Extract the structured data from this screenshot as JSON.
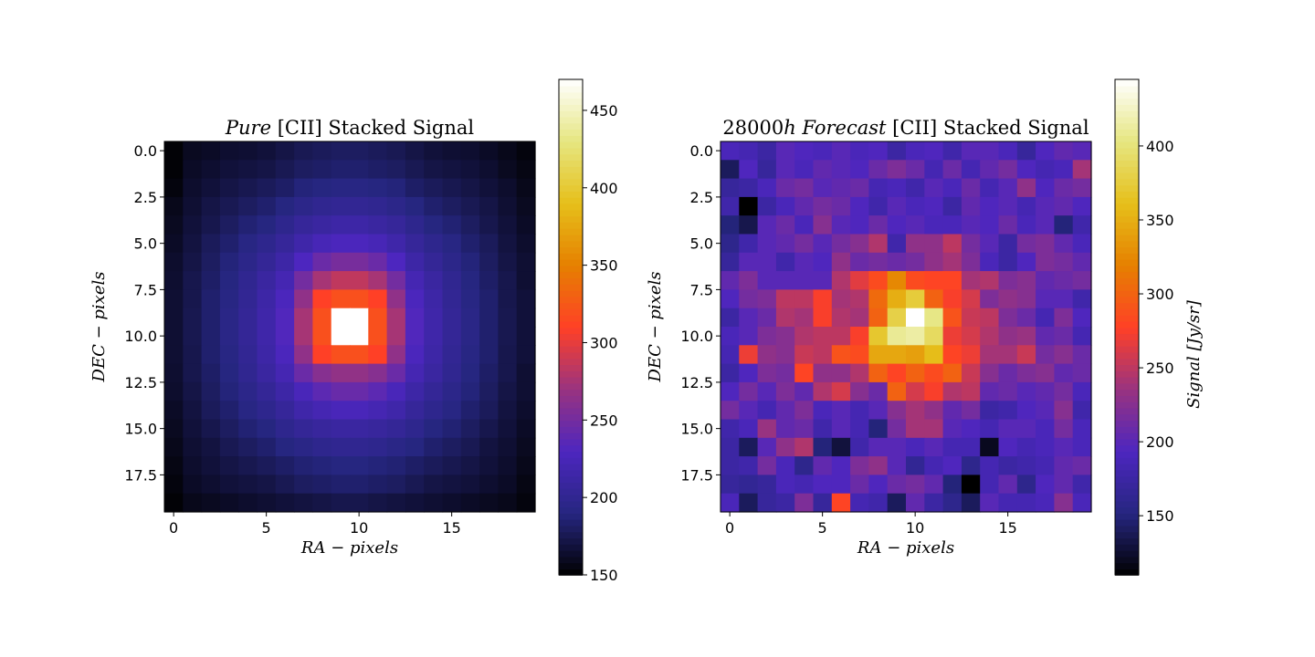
{
  "chart_data": [
    {
      "type": "heatmap",
      "title_parts": [
        {
          "text": "Pure",
          "italic": true
        },
        {
          "text": " [CII] Stacked Signal",
          "italic": false
        }
      ],
      "xlabel": "RA − pixels",
      "ylabel": "DEC − pixels",
      "xticks": [
        "0",
        "5",
        "10",
        "15"
      ],
      "yticks": [
        "0.0",
        "2.5",
        "5.0",
        "7.5",
        "10.0",
        "12.5",
        "15.0",
        "17.5"
      ],
      "xlim": [
        -0.5,
        19.5
      ],
      "ylim": [
        19.5,
        -0.5
      ],
      "colormap": "CMRmap",
      "colorbar": {
        "ticks": [
          "150",
          "200",
          "250",
          "300",
          "350",
          "400",
          "450"
        ],
        "vmin": 150,
        "vmax": 470,
        "label": ""
      },
      "grid": false,
      "values": [
        [
          152,
          160,
          162,
          165,
          166,
          168,
          172,
          176,
          178,
          180,
          180,
          178,
          176,
          172,
          168,
          166,
          165,
          162,
          158,
          154
        ],
        [
          152,
          162,
          165,
          168,
          170,
          172,
          176,
          180,
          182,
          184,
          184,
          182,
          180,
          176,
          172,
          170,
          168,
          165,
          160,
          156
        ],
        [
          154,
          164,
          168,
          172,
          175,
          178,
          182,
          188,
          190,
          192,
          192,
          190,
          188,
          182,
          178,
          175,
          172,
          168,
          164,
          158
        ],
        [
          158,
          166,
          172,
          176,
          180,
          184,
          190,
          196,
          200,
          202,
          202,
          200,
          196,
          190,
          184,
          180,
          176,
          172,
          166,
          160
        ],
        [
          160,
          168,
          174,
          180,
          186,
          190,
          198,
          206,
          210,
          214,
          214,
          210,
          206,
          198,
          190,
          186,
          180,
          174,
          168,
          162
        ],
        [
          162,
          170,
          178,
          184,
          192,
          198,
          206,
          216,
          224,
          228,
          228,
          224,
          216,
          206,
          198,
          192,
          184,
          178,
          170,
          164
        ],
        [
          164,
          172,
          180,
          188,
          196,
          204,
          214,
          230,
          245,
          252,
          252,
          245,
          230,
          214,
          204,
          196,
          188,
          180,
          172,
          166
        ],
        [
          165,
          174,
          182,
          190,
          200,
          210,
          222,
          250,
          275,
          285,
          285,
          275,
          250,
          222,
          210,
          200,
          190,
          182,
          174,
          166
        ],
        [
          166,
          174,
          184,
          192,
          202,
          214,
          228,
          265,
          310,
          320,
          320,
          310,
          265,
          228,
          214,
          202,
          192,
          184,
          174,
          168
        ],
        [
          166,
          175,
          184,
          194,
          204,
          216,
          232,
          275,
          320,
          470,
          470,
          320,
          275,
          232,
          216,
          204,
          194,
          184,
          175,
          168
        ],
        [
          166,
          175,
          184,
          194,
          204,
          216,
          232,
          275,
          320,
          470,
          470,
          320,
          275,
          232,
          216,
          204,
          194,
          184,
          175,
          168
        ],
        [
          166,
          174,
          184,
          192,
          202,
          214,
          228,
          265,
          310,
          320,
          320,
          310,
          265,
          228,
          214,
          202,
          192,
          184,
          174,
          168
        ],
        [
          165,
          174,
          182,
          190,
          200,
          210,
          222,
          245,
          260,
          266,
          266,
          260,
          245,
          222,
          210,
          200,
          190,
          182,
          174,
          166
        ],
        [
          164,
          172,
          180,
          188,
          196,
          204,
          214,
          226,
          238,
          244,
          244,
          238,
          226,
          214,
          204,
          196,
          188,
          180,
          172,
          166
        ],
        [
          162,
          170,
          178,
          184,
          192,
          198,
          206,
          216,
          222,
          226,
          226,
          222,
          216,
          206,
          198,
          192,
          184,
          178,
          170,
          164
        ],
        [
          160,
          168,
          174,
          180,
          186,
          190,
          198,
          204,
          208,
          210,
          210,
          208,
          204,
          198,
          190,
          186,
          180,
          174,
          168,
          162
        ],
        [
          158,
          166,
          170,
          176,
          180,
          184,
          190,
          194,
          198,
          200,
          200,
          198,
          194,
          190,
          184,
          180,
          176,
          170,
          166,
          160
        ],
        [
          156,
          164,
          168,
          172,
          175,
          178,
          182,
          186,
          188,
          190,
          190,
          188,
          186,
          182,
          178,
          175,
          172,
          168,
          164,
          158
        ],
        [
          154,
          162,
          165,
          168,
          170,
          172,
          176,
          180,
          182,
          184,
          184,
          182,
          180,
          176,
          172,
          170,
          168,
          165,
          162,
          156
        ],
        [
          152,
          158,
          160,
          162,
          164,
          166,
          168,
          170,
          172,
          174,
          174,
          172,
          170,
          168,
          166,
          164,
          162,
          160,
          158,
          154
        ]
      ]
    },
    {
      "type": "heatmap",
      "title_parts": [
        {
          "text": "28000",
          "italic": false
        },
        {
          "text": "h Forecast",
          "italic": true
        },
        {
          "text": " [CII] Stacked Signal",
          "italic": false
        }
      ],
      "xlabel": "RA − pixels",
      "ylabel": "DEC − pixels",
      "xticks": [
        "0",
        "5",
        "10",
        "15"
      ],
      "yticks": [
        "0.0",
        "2.5",
        "5.0",
        "7.5",
        "10.0",
        "12.5",
        "15.0",
        "17.5"
      ],
      "xlim": [
        -0.5,
        19.5
      ],
      "ylim": [
        19.5,
        -0.5
      ],
      "colormap": "CMRmap",
      "colorbar": {
        "ticks": [
          "150",
          "200",
          "250",
          "300",
          "350",
          "400"
        ],
        "vmin": 110,
        "vmax": 445,
        "label": "Signal [Jy/sr]"
      },
      "grid": false,
      "values": [
        [
          190,
          185,
          175,
          200,
          195,
          190,
          200,
          190,
          195,
          175,
          190,
          195,
          180,
          200,
          200,
          190,
          170,
          195,
          205,
          200
        ],
        [
          140,
          195,
          170,
          200,
          190,
          205,
          200,
          195,
          210,
          220,
          210,
          185,
          210,
          185,
          205,
          215,
          195,
          185,
          190,
          240
        ],
        [
          170,
          175,
          190,
          210,
          215,
          200,
          205,
          210,
          185,
          190,
          180,
          200,
          190,
          210,
          185,
          200,
          230,
          195,
          210,
          215
        ],
        [
          180,
          110,
          175,
          190,
          205,
          215,
          210,
          195,
          180,
          200,
          190,
          195,
          175,
          205,
          195,
          200,
          185,
          200,
          205,
          195
        ],
        [
          150,
          135,
          200,
          210,
          190,
          225,
          200,
          195,
          210,
          195,
          200,
          190,
          190,
          200,
          195,
          210,
          190,
          200,
          150,
          180
        ],
        [
          160,
          180,
          200,
          205,
          215,
          200,
          215,
          225,
          245,
          180,
          230,
          230,
          250,
          215,
          200,
          175,
          215,
          220,
          205,
          190
        ],
        [
          170,
          200,
          200,
          180,
          200,
          195,
          230,
          210,
          215,
          210,
          215,
          230,
          240,
          220,
          190,
          175,
          195,
          220,
          215,
          205
        ],
        [
          205,
          220,
          200,
          200,
          200,
          200,
          245,
          265,
          285,
          325,
          285,
          280,
          280,
          240,
          245,
          220,
          225,
          205,
          210,
          215
        ],
        [
          195,
          215,
          220,
          250,
          250,
          275,
          240,
          245,
          305,
          350,
          375,
          300,
          275,
          260,
          220,
          230,
          225,
          200,
          200,
          180
        ],
        [
          175,
          200,
          210,
          245,
          240,
          275,
          245,
          240,
          300,
          380,
          445,
          405,
          290,
          255,
          250,
          220,
          210,
          185,
          220,
          195
        ],
        [
          190,
          200,
          220,
          225,
          245,
          250,
          250,
          275,
          370,
          410,
          415,
          390,
          270,
          260,
          245,
          230,
          235,
          205,
          210,
          185
        ],
        [
          185,
          270,
          230,
          225,
          255,
          250,
          290,
          285,
          345,
          345,
          340,
          360,
          280,
          270,
          240,
          240,
          255,
          215,
          225,
          210
        ],
        [
          175,
          195,
          220,
          215,
          280,
          230,
          230,
          245,
          300,
          280,
          300,
          285,
          300,
          255,
          225,
          210,
          220,
          225,
          205,
          210
        ],
        [
          195,
          215,
          200,
          220,
          205,
          245,
          260,
          225,
          210,
          300,
          260,
          275,
          245,
          250,
          205,
          210,
          200,
          205,
          215,
          190
        ],
        [
          215,
          200,
          185,
          205,
          220,
          190,
          200,
          185,
          200,
          225,
          240,
          230,
          205,
          215,
          175,
          180,
          195,
          200,
          225,
          180
        ],
        [
          180,
          190,
          235,
          205,
          210,
          180,
          200,
          185,
          150,
          215,
          240,
          240,
          200,
          195,
          185,
          200,
          200,
          190,
          215,
          190
        ],
        [
          175,
          140,
          200,
          230,
          245,
          150,
          130,
          180,
          200,
          200,
          190,
          200,
          185,
          185,
          120,
          195,
          185,
          190,
          200,
          190
        ],
        [
          175,
          180,
          215,
          190,
          160,
          205,
          195,
          220,
          230,
          200,
          165,
          185,
          195,
          160,
          185,
          175,
          180,
          185,
          205,
          210
        ],
        [
          170,
          165,
          170,
          190,
          185,
          195,
          195,
          210,
          195,
          210,
          215,
          205,
          150,
          110,
          185,
          205,
          160,
          195,
          205,
          180
        ],
        [
          190,
          140,
          170,
          175,
          220,
          170,
          280,
          185,
          180,
          140,
          205,
          175,
          160,
          140,
          200,
          185,
          185,
          190,
          225,
          190
        ]
      ]
    }
  ]
}
